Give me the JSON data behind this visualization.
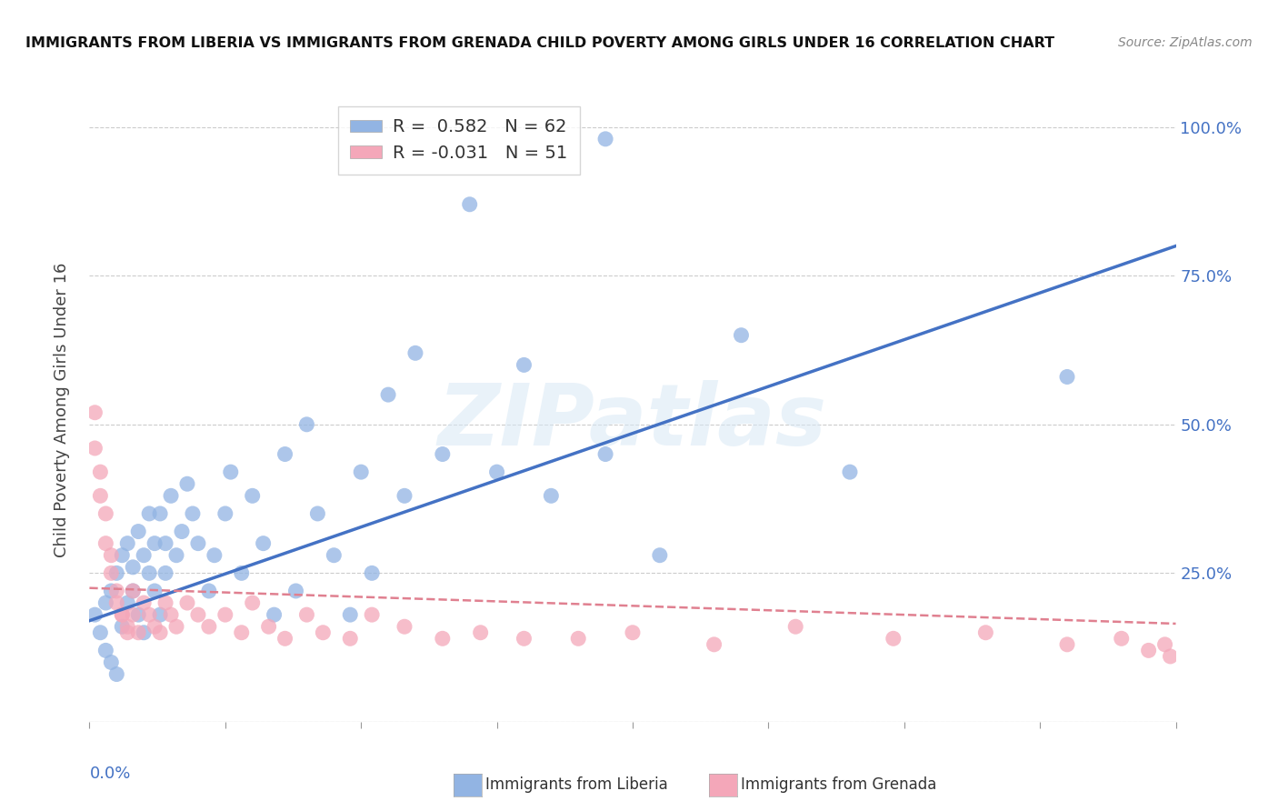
{
  "title": "IMMIGRANTS FROM LIBERIA VS IMMIGRANTS FROM GRENADA CHILD POVERTY AMONG GIRLS UNDER 16 CORRELATION CHART",
  "source": "Source: ZipAtlas.com",
  "ylabel": "Child Poverty Among Girls Under 16",
  "xmin": 0.0,
  "xmax": 0.2,
  "ymin": 0.0,
  "ymax": 1.05,
  "liberia_R": 0.582,
  "liberia_N": 62,
  "grenada_R": -0.031,
  "grenada_N": 51,
  "liberia_color": "#92b4e3",
  "grenada_color": "#f4a7b9",
  "liberia_line_color": "#4472c4",
  "grenada_line_color": "#e08090",
  "watermark": "ZIPatlas",
  "liberia_x": [
    0.001,
    0.002,
    0.003,
    0.003,
    0.004,
    0.004,
    0.005,
    0.005,
    0.006,
    0.006,
    0.007,
    0.007,
    0.008,
    0.008,
    0.009,
    0.009,
    0.01,
    0.01,
    0.011,
    0.011,
    0.012,
    0.012,
    0.013,
    0.013,
    0.014,
    0.014,
    0.015,
    0.016,
    0.017,
    0.018,
    0.019,
    0.02,
    0.022,
    0.023,
    0.025,
    0.026,
    0.028,
    0.03,
    0.032,
    0.034,
    0.036,
    0.038,
    0.04,
    0.042,
    0.045,
    0.048,
    0.05,
    0.052,
    0.055,
    0.058,
    0.06,
    0.065,
    0.07,
    0.075,
    0.08,
    0.085,
    0.095,
    0.105,
    0.12,
    0.14,
    0.16,
    0.18
  ],
  "liberia_y": [
    0.18,
    0.15,
    0.2,
    0.12,
    0.22,
    0.1,
    0.25,
    0.08,
    0.28,
    0.16,
    0.3,
    0.2,
    0.26,
    0.22,
    0.32,
    0.18,
    0.28,
    0.15,
    0.35,
    0.25,
    0.3,
    0.22,
    0.35,
    0.18,
    0.3,
    0.25,
    0.38,
    0.28,
    0.32,
    0.4,
    0.35,
    0.3,
    0.22,
    0.28,
    0.35,
    0.42,
    0.25,
    0.38,
    0.3,
    0.18,
    0.45,
    0.22,
    0.5,
    0.35,
    0.28,
    0.18,
    0.42,
    0.25,
    0.55,
    0.38,
    0.5,
    0.45,
    0.25,
    0.42,
    0.6,
    0.38,
    0.45,
    0.28,
    0.65,
    0.42,
    0.7,
    0.58
  ],
  "grenada_x": [
    0.001,
    0.001,
    0.002,
    0.002,
    0.003,
    0.003,
    0.004,
    0.004,
    0.005,
    0.005,
    0.006,
    0.006,
    0.007,
    0.007,
    0.008,
    0.008,
    0.009,
    0.01,
    0.011,
    0.012,
    0.013,
    0.014,
    0.015,
    0.016,
    0.018,
    0.02,
    0.022,
    0.025,
    0.028,
    0.03,
    0.033,
    0.036,
    0.04,
    0.043,
    0.048,
    0.052,
    0.058,
    0.065,
    0.072,
    0.08,
    0.09,
    0.1,
    0.115,
    0.13,
    0.148,
    0.165,
    0.18,
    0.19,
    0.195,
    0.198,
    0.199
  ],
  "grenada_y": [
    0.52,
    0.46,
    0.42,
    0.38,
    0.35,
    0.3,
    0.28,
    0.25,
    0.22,
    0.2,
    0.18,
    0.18,
    0.16,
    0.15,
    0.22,
    0.18,
    0.15,
    0.2,
    0.18,
    0.16,
    0.15,
    0.2,
    0.18,
    0.16,
    0.2,
    0.18,
    0.16,
    0.18,
    0.15,
    0.2,
    0.16,
    0.14,
    0.18,
    0.15,
    0.14,
    0.18,
    0.16,
    0.14,
    0.15,
    0.14,
    0.14,
    0.15,
    0.13,
    0.16,
    0.14,
    0.15,
    0.13,
    0.14,
    0.12,
    0.13,
    0.11
  ]
}
